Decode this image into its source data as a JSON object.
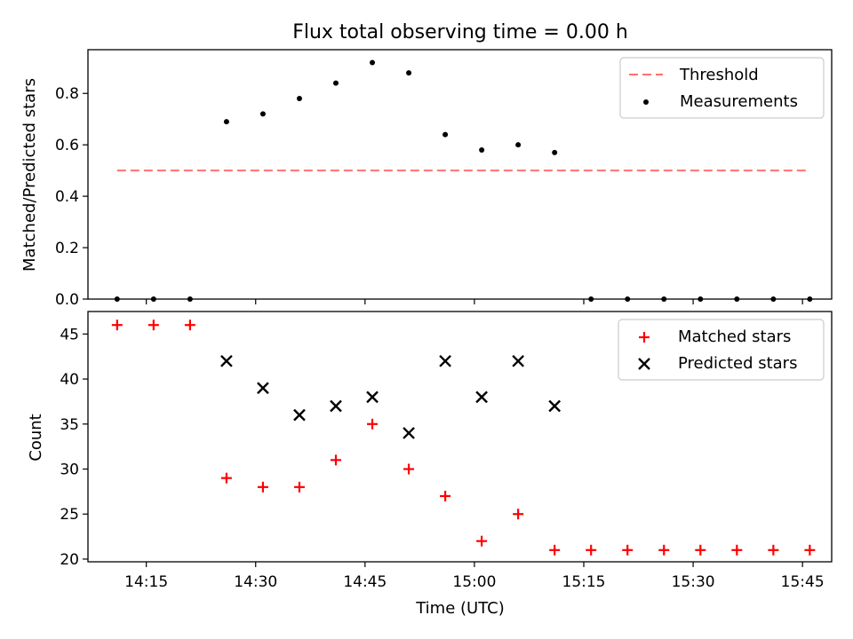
{
  "chart_data": [
    {
      "type": "scatter",
      "title": "Flux total observing time = 0.00 h",
      "xlabel": "",
      "ylabel": "Matched/Predicted stars",
      "xlim": [
        "14:07",
        "15:49"
      ],
      "ylim": [
        0,
        0.97
      ],
      "yticks": [
        0.0,
        0.2,
        0.4,
        0.6,
        0.8
      ],
      "ytick_labels": [
        "0.0",
        "0.2",
        "0.4",
        "0.6",
        "0.8"
      ],
      "legend_position": "top-right",
      "series": [
        {
          "name": "Threshold",
          "kind": "line",
          "style": "dashed",
          "color": "#ff7070",
          "x": [
            "14:11",
            "15:46"
          ],
          "y": [
            0.5,
            0.5
          ]
        },
        {
          "name": "Measurements",
          "kind": "scatter",
          "marker": "dot",
          "color": "#000000",
          "x": [
            "14:11",
            "14:16",
            "14:21",
            "14:26",
            "14:31",
            "14:36",
            "14:41",
            "14:46",
            "14:51",
            "14:56",
            "15:01",
            "15:06",
            "15:11",
            "15:16",
            "15:21",
            "15:26",
            "15:31",
            "15:36",
            "15:41",
            "15:46"
          ],
          "y": [
            0.0,
            0.0,
            0.0,
            0.69,
            0.72,
            0.78,
            0.84,
            0.92,
            0.88,
            0.64,
            0.58,
            0.6,
            0.57,
            0.0,
            0.0,
            0.0,
            0.0,
            0.0,
            0.0,
            0.0
          ]
        }
      ]
    },
    {
      "type": "scatter",
      "title": "",
      "xlabel": "Time (UTC)",
      "ylabel": "Count",
      "xlim": [
        "14:07",
        "15:49"
      ],
      "ylim": [
        19.7,
        47.5
      ],
      "xticks": [
        "14:15",
        "14:30",
        "14:45",
        "15:00",
        "15:15",
        "15:30",
        "15:45"
      ],
      "yticks": [
        20,
        25,
        30,
        35,
        40,
        45
      ],
      "ytick_labels": [
        "20",
        "25",
        "30",
        "35",
        "40",
        "45"
      ],
      "legend_position": "top-right",
      "series": [
        {
          "name": "Matched stars",
          "kind": "scatter",
          "marker": "plus",
          "color": "#ff0000",
          "x": [
            "14:11",
            "14:16",
            "14:21",
            "14:26",
            "14:31",
            "14:36",
            "14:41",
            "14:46",
            "14:51",
            "14:56",
            "15:01",
            "15:06",
            "15:11",
            "15:16",
            "15:21",
            "15:26",
            "15:31",
            "15:36",
            "15:41",
            "15:46"
          ],
          "y": [
            46,
            46,
            46,
            29,
            28,
            28,
            31,
            35,
            30,
            27,
            22,
            25,
            21,
            21,
            21,
            21,
            21,
            21,
            21,
            21
          ]
        },
        {
          "name": "Predicted stars",
          "kind": "scatter",
          "marker": "x",
          "color": "#000000",
          "x": [
            "14:26",
            "14:31",
            "14:36",
            "14:41",
            "14:46",
            "14:51",
            "14:56",
            "15:01",
            "15:06",
            "15:11"
          ],
          "y": [
            42,
            39,
            36,
            37,
            38,
            34,
            42,
            38,
            42,
            37
          ]
        }
      ]
    }
  ]
}
